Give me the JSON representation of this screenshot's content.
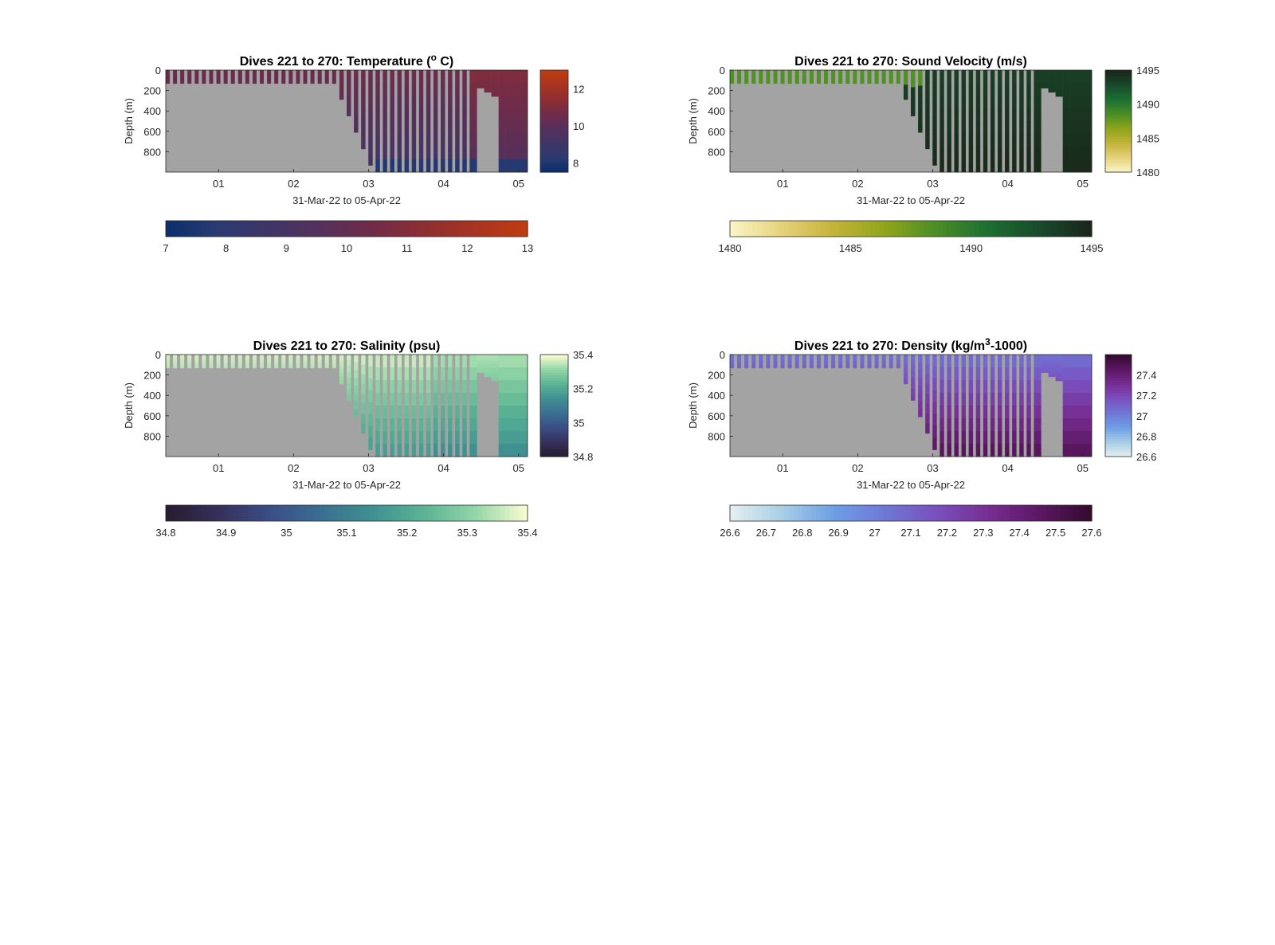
{
  "colors": {
    "background": "#ffffff",
    "no_data": "#a3a3a3",
    "frame": "#262626",
    "title_text": "#000000",
    "axis_text": "#262626"
  },
  "chart_data": [
    {
      "type": "heatmap",
      "title_prefix": "Dives 221 to 270: Temperature (",
      "title_sup": "o",
      "title_suffix": " C)",
      "xlabel": "31-Mar-22 to 05-Apr-22",
      "ylabel": "Depth (m)",
      "xticks": [
        "01",
        "02",
        "03",
        "04",
        "05"
      ],
      "yticks": [
        "0",
        "200",
        "400",
        "600",
        "800"
      ],
      "ylim": [
        0,
        1000
      ],
      "y_reversed": true,
      "colorbar_ticks": [
        "8",
        "10",
        "12"
      ],
      "colorbar_range": [
        7.5,
        13
      ],
      "colorbar2_ticks": [
        "7",
        "8",
        "9",
        "10",
        "11",
        "12",
        "13"
      ],
      "colorbar2_range": [
        7,
        13
      ],
      "colormap": [
        "#0a2f6b",
        "#2b3a72",
        "#3f3566",
        "#55305c",
        "#702c48",
        "#8e2e33",
        "#a93420",
        "#bf3d10"
      ],
      "field_desc": "upper water ~10-11 C, deep water ~8 C below ~900 m"
    },
    {
      "type": "heatmap",
      "title_prefix": "Dives 221 to 270: Sound Velocity (m/s)",
      "title_sup": "",
      "title_suffix": "",
      "xlabel": "31-Mar-22 to 05-Apr-22",
      "ylabel": "Depth (m)",
      "xticks": [
        "01",
        "02",
        "03",
        "04",
        "05"
      ],
      "yticks": [
        "0",
        "200",
        "400",
        "600",
        "800"
      ],
      "ylim": [
        0,
        1000
      ],
      "y_reversed": true,
      "colorbar_ticks": [
        "1480",
        "1485",
        "1490",
        "1495"
      ],
      "colorbar_range": [
        1480,
        1495
      ],
      "colorbar2_ticks": [
        "1480",
        "1485",
        "1490",
        "1495"
      ],
      "colorbar2_range": [
        1480,
        1495
      ],
      "colormap": [
        "#fbf6c8",
        "#e6d27a",
        "#c4b33a",
        "#8fa51a",
        "#4a8e26",
        "#1c6f32",
        "#184a2b",
        "#1a2419"
      ],
      "field_desc": "values near 1491-1495 throughout"
    },
    {
      "type": "heatmap",
      "title_prefix": "Dives 221 to 270: Salinity (psu)",
      "title_sup": "",
      "title_suffix": "",
      "xlabel": "31-Mar-22 to 05-Apr-22",
      "ylabel": "Depth (m)",
      "xticks": [
        "01",
        "02",
        "03",
        "04",
        "05"
      ],
      "yticks": [
        "0",
        "200",
        "400",
        "600",
        "800"
      ],
      "ylim": [
        0,
        1000
      ],
      "y_reversed": true,
      "colorbar_ticks": [
        "34.8",
        "35",
        "35.2",
        "35.4"
      ],
      "colorbar_range": [
        34.8,
        35.4
      ],
      "colorbar2_ticks": [
        "34.8",
        "34.9",
        "35",
        "35.1",
        "35.2",
        "35.3",
        "35.4"
      ],
      "colorbar2_range": [
        34.8,
        35.4
      ],
      "colormap": [
        "#271b2f",
        "#35305a",
        "#3a4d85",
        "#3a6e92",
        "#3f9191",
        "#5bb494",
        "#93d6a7",
        "#fcfdd2"
      ],
      "field_desc": "surface ~35.35, deep ~35.2"
    },
    {
      "type": "heatmap",
      "title_prefix": "Dives 221 to 270: Density (kg/m",
      "title_sup": "3",
      "title_suffix": "-1000)",
      "xlabel": "31-Mar-22 to 05-Apr-22",
      "ylabel": "Depth (m)",
      "xticks": [
        "01",
        "02",
        "03",
        "04",
        "05"
      ],
      "yticks": [
        "0",
        "200",
        "400",
        "600",
        "800"
      ],
      "ylim": [
        0,
        1000
      ],
      "y_reversed": true,
      "colorbar_ticks": [
        "26.6",
        "26.8",
        "27",
        "27.2",
        "27.4"
      ],
      "colorbar_range": [
        26.6,
        27.6
      ],
      "colorbar2_ticks": [
        "26.6",
        "26.7",
        "26.8",
        "26.9",
        "27",
        "27.1",
        "27.2",
        "27.3",
        "27.4",
        "27.5",
        "27.6"
      ],
      "colorbar2_range": [
        26.6,
        27.6
      ],
      "colormap": [
        "#e6f0f0",
        "#a8cfe6",
        "#6e9ee5",
        "#6f78d6",
        "#7a4fbf",
        "#772e92",
        "#5c1763",
        "#330a2c"
      ],
      "field_desc": "~27.1 upper, ~27.5 deep"
    }
  ]
}
